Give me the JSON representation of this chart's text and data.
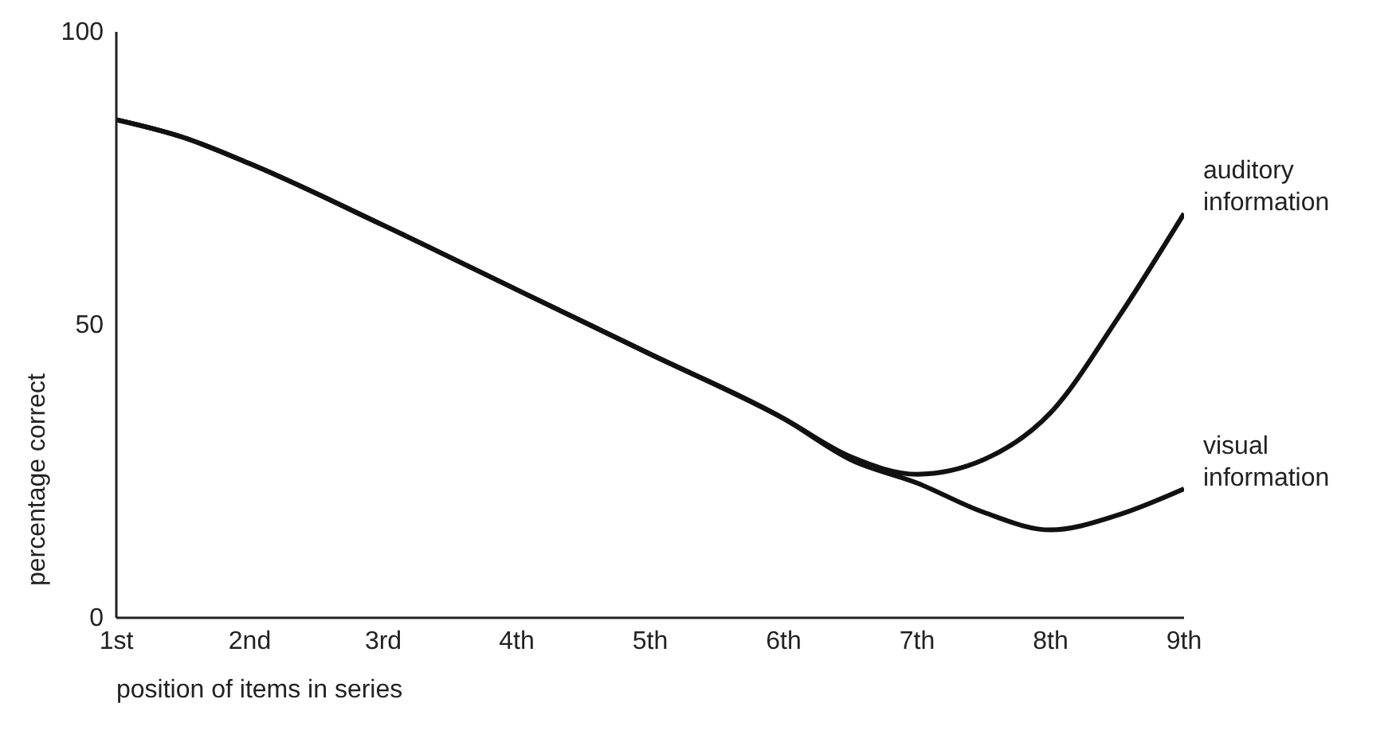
{
  "chart_data": {
    "type": "line",
    "xlabel": "position of items in series",
    "ylabel": "percentage correct",
    "xlim": [
      1,
      9
    ],
    "xticks": [
      {
        "value": 1,
        "label": "1st"
      },
      {
        "value": 2,
        "label": "2nd"
      },
      {
        "value": 3,
        "label": "3rd"
      },
      {
        "value": 4,
        "label": "4th"
      },
      {
        "value": 5,
        "label": "5th"
      },
      {
        "value": 6,
        "label": "6th"
      },
      {
        "value": 7,
        "label": "7th"
      },
      {
        "value": 8,
        "label": "8th"
      },
      {
        "value": 9,
        "label": "9th"
      }
    ],
    "ylim": [
      0,
      100
    ],
    "yticks": [
      0,
      50,
      100
    ],
    "grid": false,
    "legend": false,
    "marker": "none",
    "line_style": "solid",
    "series": [
      {
        "name": "auditory information",
        "color": "#111111",
        "x": [
          1,
          1.5,
          2,
          3,
          4,
          5,
          6,
          6.5,
          7,
          7.5,
          8,
          8.5,
          9
        ],
        "values": [
          85,
          82,
          77.5,
          67,
          56,
          45,
          34,
          27.5,
          24.5,
          27,
          35,
          51,
          69
        ]
      },
      {
        "name": "visual information",
        "color": "#111111",
        "x": [
          1,
          1.5,
          2,
          3,
          4,
          5,
          6,
          6.5,
          7,
          7.5,
          8,
          8.5,
          9
        ],
        "values": [
          85,
          82,
          77.5,
          67,
          56,
          45,
          34,
          27,
          23,
          18,
          15,
          17.5,
          22
        ]
      }
    ]
  }
}
